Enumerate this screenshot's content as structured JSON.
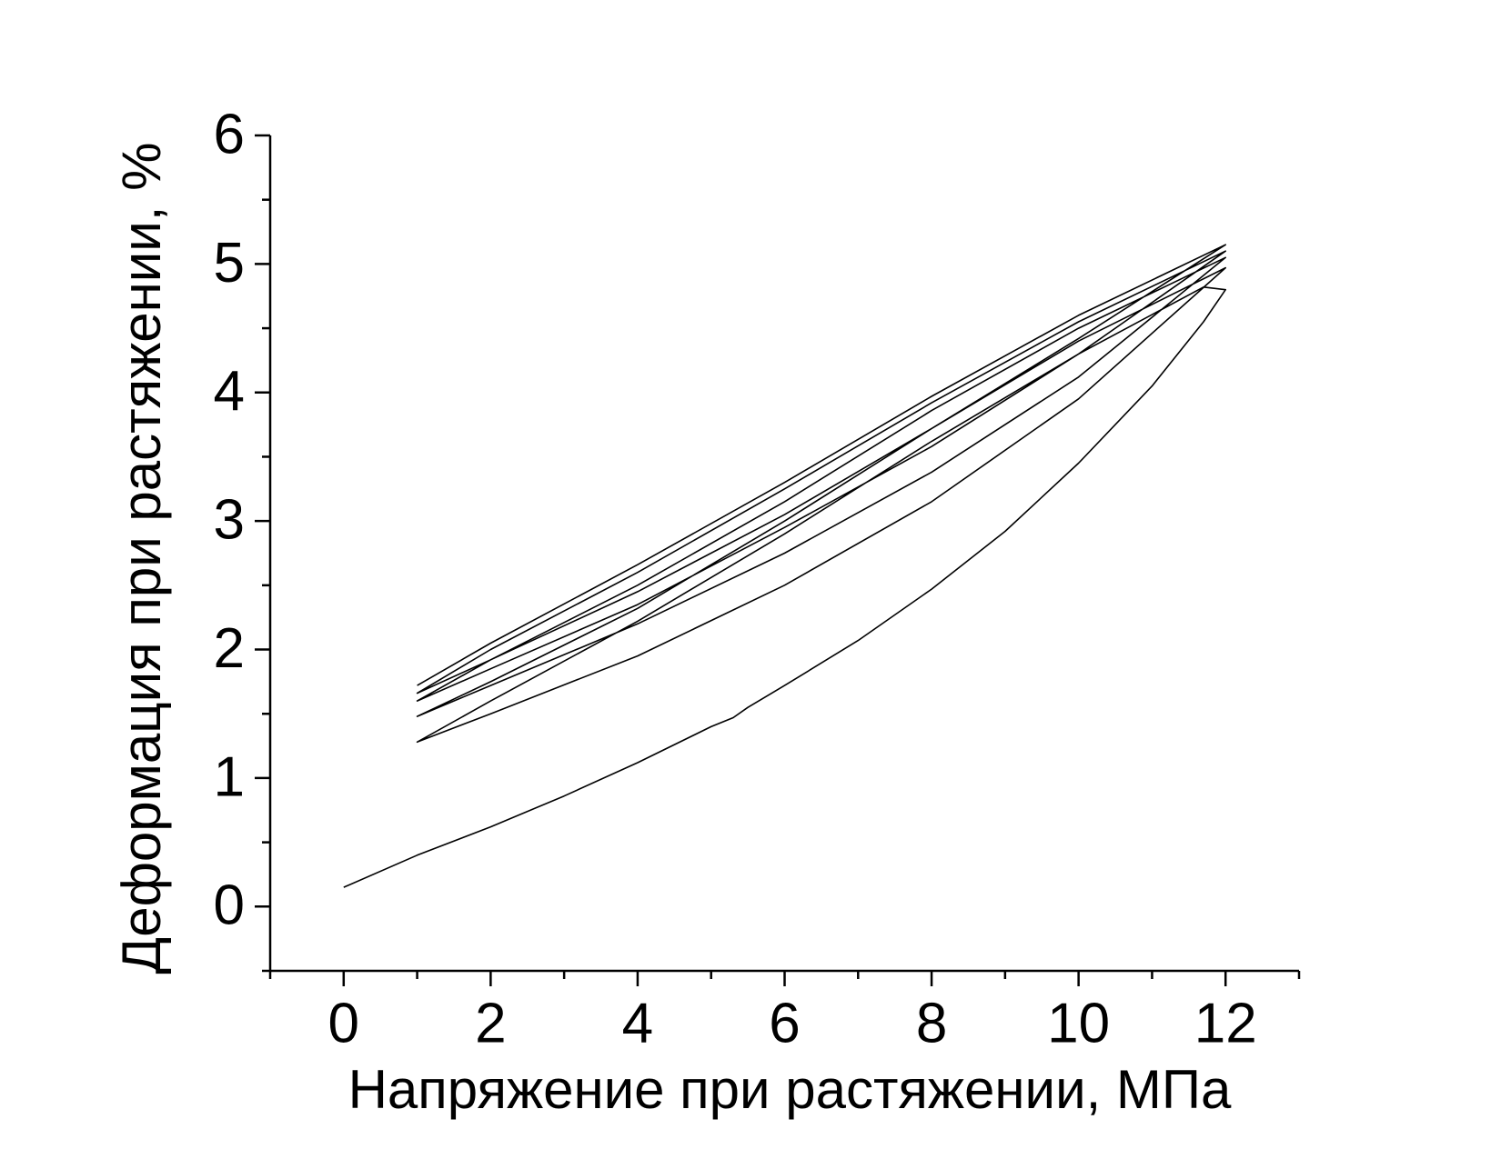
{
  "chart_data": {
    "type": "line",
    "x_label": "Напряжение при растяжении, МПа",
    "y_label": "Деформация при растяжении, %",
    "color": "#000000",
    "xlim": [
      -1,
      13
    ],
    "ylim": [
      -0.5,
      6
    ],
    "xticks": [
      0,
      2,
      4,
      6,
      8,
      10,
      12
    ],
    "yticks": [
      0,
      1,
      2,
      3,
      4,
      5,
      6
    ],
    "x": [
      0,
      1,
      2,
      3,
      4,
      5,
      5.3,
      5.5,
      6,
      7,
      8,
      9,
      10,
      11,
      11.7,
      12,
      11.7,
      10,
      8,
      6,
      4,
      2,
      1,
      2,
      4,
      6,
      8,
      10,
      12,
      10,
      8,
      6,
      4,
      2,
      1,
      2,
      4,
      6,
      8,
      10,
      12,
      10,
      8,
      6,
      4,
      2,
      1,
      2,
      4,
      6,
      8,
      10,
      12,
      10,
      8,
      6,
      4,
      2,
      1,
      2,
      4,
      6,
      8,
      10,
      12,
      10,
      8,
      6,
      4,
      2,
      1
    ],
    "values": [
      0.15,
      0.4,
      0.62,
      0.86,
      1.12,
      1.4,
      1.47,
      1.55,
      1.72,
      2.07,
      2.47,
      2.92,
      3.45,
      4.05,
      4.55,
      4.8,
      4.82,
      4.3,
      3.62,
      2.9,
      2.22,
      1.6,
      1.28,
      1.5,
      1.95,
      2.5,
      3.15,
      3.95,
      4.97,
      4.4,
      3.72,
      3.0,
      2.32,
      1.75,
      1.48,
      1.72,
      2.2,
      2.75,
      3.38,
      4.12,
      5.05,
      4.5,
      3.86,
      3.15,
      2.5,
      1.92,
      1.6,
      1.85,
      2.35,
      2.95,
      3.58,
      4.3,
      5.1,
      4.55,
      3.92,
      3.25,
      2.6,
      2.0,
      1.66,
      1.92,
      2.45,
      3.05,
      3.72,
      4.42,
      5.15,
      4.6,
      3.97,
      3.3,
      2.66,
      2.05,
      1.72
    ]
  }
}
